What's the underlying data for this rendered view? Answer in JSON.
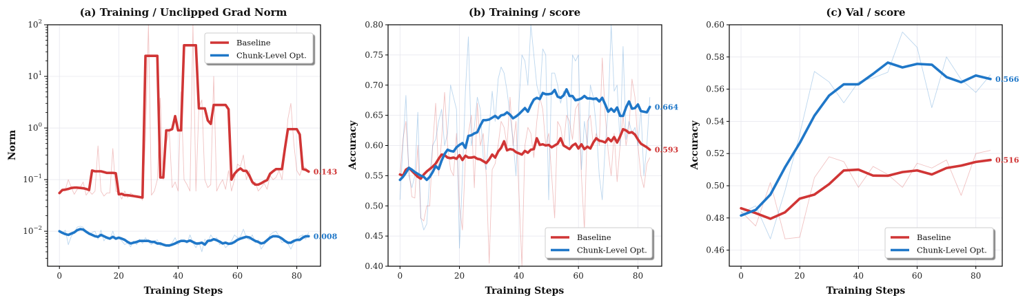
{
  "chart_data": [
    {
      "id": "a",
      "type": "line",
      "title": "(a) Training / Unclipped Grad Norm",
      "xlabel": "Training Steps",
      "ylabel": "Norm",
      "yscale": "log",
      "xlim": [
        -4,
        88
      ],
      "ylim": [
        0.0021,
        100
      ],
      "xticks": [
        0,
        20,
        40,
        60,
        80
      ],
      "yticks": [
        {
          "value": 0.01,
          "base": "10",
          "exp": "−2"
        },
        {
          "value": 0.1,
          "base": "10",
          "exp": "−1"
        },
        {
          "value": 1,
          "base": "10",
          "exp": "0"
        },
        {
          "value": 10,
          "base": "10",
          "exp": "1"
        },
        {
          "value": 100,
          "base": "10",
          "exp": "2"
        }
      ],
      "grid": true,
      "legend": {
        "position": "top-right",
        "entries": [
          "Baseline",
          "Chunk-Level Opt."
        ]
      },
      "series": [
        {
          "name": "Baseline",
          "color": "#d03535",
          "end_label": "0.143",
          "raw": [
            0.055,
            0.06,
            0.065,
            0.1,
            0.07,
            0.052,
            0.065,
            0.07,
            0.09,
            0.05,
            0.06,
            0.052,
            0.06,
            0.45,
            0.06,
            0.048,
            0.055,
            0.055,
            0.4,
            0.06,
            0.055,
            0.042,
            0.06,
            0.045,
            0.055,
            0.05,
            0.045,
            0.048,
            0.04,
            0.6,
            100,
            0.05,
            0.06,
            0.1,
            3.8,
            0.1,
            0.5,
            0.9,
            0.07,
            0.09,
            0.06,
            5,
            0.1,
            0.08,
            0.06,
            100,
            0.06,
            2.5,
            3.5,
            0.1,
            0.07,
            0.08,
            10,
            0.06,
            0.08,
            0.1,
            0.065,
            0.15,
            0.06,
            0.1,
            0.2,
            0.18,
            0.3,
            0.1,
            0.15,
            0.08,
            0.09,
            0.06,
            0.07,
            0.085,
            0.065,
            0.12,
            0.1,
            0.11,
            0.15,
            0.1,
            0.3,
            1.5,
            3,
            0.5,
            0.15,
            0.12,
            0.18,
            0.17,
            0.14
          ],
          "smoothed": [
            0.055,
            0.063,
            0.064,
            0.066,
            0.069,
            0.07,
            0.07,
            0.069,
            0.068,
            0.066,
            0.063,
            0.15,
            0.145,
            0.145,
            0.145,
            0.14,
            0.135,
            0.135,
            0.135,
            0.133,
            0.052,
            0.053,
            0.05,
            0.05,
            0.049,
            0.048,
            0.047,
            0.046,
            0.045,
            25,
            25,
            25,
            25,
            25,
            0.11,
            0.11,
            0.9,
            0.9,
            0.95,
            1.7,
            0.9,
            0.9,
            40,
            40,
            40,
            40,
            40,
            2.4,
            2.4,
            2.4,
            1.4,
            1.2,
            2.8,
            2.8,
            2.8,
            2.8,
            2.8,
            2.3,
            0.1,
            0.13,
            0.15,
            0.165,
            0.148,
            0.148,
            0.12,
            0.09,
            0.08,
            0.08,
            0.085,
            0.092,
            0.098,
            0.13,
            0.145,
            0.16,
            0.16,
            0.16,
            0.4,
            0.95,
            0.95,
            0.95,
            0.95,
            0.75,
            0.16,
            0.155,
            0.143
          ]
        },
        {
          "name": "Chunk-Level Opt.",
          "color": "#1f77c8",
          "end_label": "0.008",
          "raw": [
            0.01,
            0.009,
            0.0105,
            0.0055,
            0.008,
            0.0095,
            0.012,
            0.0125,
            0.012,
            0.0095,
            0.0085,
            0.0095,
            0.01,
            0.007,
            0.0105,
            0.0065,
            0.008,
            0.007,
            0.01,
            0.0068,
            0.0075,
            0.0065,
            0.0055,
            0.006,
            0.005,
            0.0065,
            0.0055,
            0.007,
            0.0058,
            0.0075,
            0.0062,
            0.0055,
            0.0065,
            0.0068,
            0.0052,
            0.0058,
            0.0052,
            0.005,
            0.006,
            0.0075,
            0.0055,
            0.0065,
            0.0065,
            0.0058,
            0.0085,
            0.006,
            0.0048,
            0.0062,
            0.004,
            0.007,
            0.006,
            0.0085,
            0.007,
            0.0075,
            0.0055,
            0.0062,
            0.0048,
            0.0055,
            0.0065,
            0.0085,
            0.0075,
            0.0078,
            0.011,
            0.0075,
            0.0068,
            0.0085,
            0.006,
            0.0068,
            0.0045,
            0.0055,
            0.0065,
            0.0085,
            0.0095,
            0.01,
            0.008,
            0.006,
            0.0065,
            0.0058,
            0.0045,
            0.006,
            0.0068,
            0.008,
            0.0085,
            0.007,
            0.0095
          ],
          "smoothed": [
            0.01,
            0.0093,
            0.0088,
            0.0085,
            0.009,
            0.0095,
            0.0105,
            0.011,
            0.0108,
            0.0098,
            0.009,
            0.0085,
            0.008,
            0.0078,
            0.0085,
            0.008,
            0.0075,
            0.0072,
            0.0078,
            0.0072,
            0.0075,
            0.0072,
            0.0068,
            0.0062,
            0.0058,
            0.006,
            0.0062,
            0.0065,
            0.0065,
            0.0065,
            0.0065,
            0.0062,
            0.0062,
            0.0058,
            0.0058,
            0.0055,
            0.0053,
            0.0053,
            0.0055,
            0.0058,
            0.0062,
            0.0065,
            0.0065,
            0.0063,
            0.0066,
            0.0062,
            0.0058,
            0.0058,
            0.006,
            0.0055,
            0.0065,
            0.0066,
            0.007,
            0.0067,
            0.0063,
            0.0058,
            0.006,
            0.0057,
            0.0058,
            0.0062,
            0.0068,
            0.0072,
            0.0075,
            0.0078,
            0.0076,
            0.007,
            0.0065,
            0.0062,
            0.0058,
            0.006,
            0.0067,
            0.0075,
            0.008,
            0.008,
            0.0078,
            0.0072,
            0.0065,
            0.006,
            0.006,
            0.0065,
            0.0068,
            0.0068,
            0.0075,
            0.008,
            0.008
          ]
        }
      ]
    },
    {
      "id": "b",
      "type": "line",
      "title": "(b) Training / score",
      "xlabel": "Training Steps",
      "ylabel": "Accuracy",
      "yscale": "linear",
      "xlim": [
        -4,
        88
      ],
      "ylim": [
        0.4,
        0.8
      ],
      "xticks": [
        0,
        20,
        40,
        60,
        80
      ],
      "yticks": [
        "0.40",
        "0.45",
        "0.50",
        "0.55",
        "0.60",
        "0.65",
        "0.70",
        "0.75",
        "0.80"
      ],
      "grid": true,
      "legend": {
        "position": "lower-right",
        "entries": [
          "Baseline",
          "Chunk-Level Opt."
        ]
      },
      "series": [
        {
          "name": "Baseline",
          "color": "#d03535",
          "end_label": "0.593",
          "raw": [
            0.55,
            0.61,
            0.64,
            0.56,
            0.515,
            0.513,
            0.6,
            0.48,
            0.475,
            0.5,
            0.5,
            0.6,
            0.67,
            0.55,
            0.61,
            0.688,
            0.6,
            0.56,
            0.55,
            0.62,
            0.5,
            0.46,
            0.58,
            0.62,
            0.65,
            0.53,
            0.67,
            0.6,
            0.62,
            0.55,
            0.405,
            0.56,
            0.57,
            0.6,
            0.64,
            0.63,
            0.6,
            0.68,
            0.6,
            0.64,
            0.52,
            0.4,
            0.6,
            0.63,
            0.62,
            0.58,
            0.64,
            0.68,
            0.66,
            0.6,
            0.62,
            0.55,
            0.48,
            0.64,
            0.63,
            0.6,
            0.65,
            0.64,
            0.61,
            0.66,
            0.67,
            0.55,
            0.46,
            0.64,
            0.65,
            0.6,
            0.62,
            0.6,
            0.745,
            0.65,
            0.59,
            0.55,
            0.62,
            0.54,
            0.6,
            0.65,
            0.6,
            0.63,
            0.71,
            0.68,
            0.6,
            0.55,
            0.53,
            0.57,
            0.58
          ],
          "smoothed": [
            0.552,
            0.55,
            0.56,
            0.563,
            0.558,
            0.553,
            0.548,
            0.545,
            0.552,
            0.557,
            0.561,
            0.565,
            0.57,
            0.578,
            0.585,
            0.584,
            0.58,
            0.579,
            0.58,
            0.578,
            0.584,
            0.576,
            0.583,
            0.58,
            0.58,
            0.581,
            0.578,
            0.577,
            0.574,
            0.571,
            0.577,
            0.585,
            0.58,
            0.59,
            0.596,
            0.607,
            0.592,
            0.594,
            0.593,
            0.589,
            0.587,
            0.585,
            0.591,
            0.588,
            0.593,
            0.594,
            0.612,
            0.601,
            0.602,
            0.6,
            0.601,
            0.597,
            0.6,
            0.603,
            0.612,
            0.6,
            0.597,
            0.594,
            0.6,
            0.603,
            0.595,
            0.602,
            0.594,
            0.598,
            0.595,
            0.605,
            0.612,
            0.608,
            0.607,
            0.605,
            0.612,
            0.607,
            0.614,
            0.605,
            0.615,
            0.627,
            0.625,
            0.621,
            0.622,
            0.618,
            0.61,
            0.603,
            0.6,
            0.597,
            0.593
          ]
        },
        {
          "name": "Chunk-Level Opt.",
          "color": "#1f77c8",
          "end_label": "0.664",
          "raw": [
            0.51,
            0.6,
            0.683,
            0.55,
            0.53,
            0.55,
            0.655,
            0.48,
            0.46,
            0.47,
            0.55,
            0.6,
            0.61,
            0.64,
            0.66,
            0.6,
            0.62,
            0.7,
            0.68,
            0.66,
            0.43,
            0.55,
            0.69,
            0.78,
            0.6,
            0.63,
            0.68,
            0.66,
            0.58,
            0.56,
            0.63,
            0.69,
            0.64,
            0.71,
            0.73,
            0.72,
            0.69,
            0.65,
            0.61,
            0.55,
            0.67,
            0.75,
            0.74,
            0.7,
            0.8,
            0.75,
            0.7,
            0.68,
            0.76,
            0.75,
            0.51,
            0.72,
            0.72,
            0.7,
            0.67,
            0.69,
            0.68,
            0.6,
            0.75,
            0.74,
            0.75,
            0.56,
            0.64,
            0.6,
            0.7,
            0.68,
            0.63,
            0.55,
            0.51,
            0.6,
            0.66,
            0.8,
            0.69,
            0.7,
            0.6,
            0.764,
            0.61,
            0.64,
            0.62,
            0.63,
            0.6,
            0.66,
            0.55,
            0.6,
            0.68
          ],
          "smoothed": [
            0.543,
            0.548,
            0.555,
            0.563,
            0.56,
            0.556,
            0.553,
            0.55,
            0.548,
            0.543,
            0.548,
            0.556,
            0.566,
            0.561,
            0.575,
            0.586,
            0.593,
            0.591,
            0.59,
            0.597,
            0.601,
            0.604,
            0.596,
            0.616,
            0.617,
            0.62,
            0.622,
            0.633,
            0.642,
            0.642,
            0.643,
            0.646,
            0.649,
            0.645,
            0.65,
            0.651,
            0.655,
            0.651,
            0.645,
            0.648,
            0.652,
            0.657,
            0.662,
            0.656,
            0.667,
            0.676,
            0.679,
            0.677,
            0.687,
            0.685,
            0.685,
            0.686,
            0.692,
            0.681,
            0.679,
            0.683,
            0.693,
            0.682,
            0.682,
            0.675,
            0.676,
            0.678,
            0.682,
            0.678,
            0.678,
            0.677,
            0.678,
            0.673,
            0.679,
            0.668,
            0.656,
            0.661,
            0.656,
            0.663,
            0.649,
            0.649,
            0.663,
            0.673,
            0.661,
            0.662,
            0.668,
            0.657,
            0.656,
            0.655,
            0.664
          ]
        }
      ]
    },
    {
      "id": "c",
      "type": "line",
      "title": "(c) Val / score",
      "xlabel": "Training Steps",
      "ylabel": "Accuracy",
      "yscale": "linear",
      "xlim": [
        -4,
        89
      ],
      "ylim": [
        0.45,
        0.6
      ],
      "xticks": [
        0,
        20,
        40,
        60,
        80
      ],
      "yticks": [
        "0.46",
        "0.48",
        "0.50",
        "0.52",
        "0.54",
        "0.56",
        "0.58",
        "0.60"
      ],
      "grid": true,
      "legend": {
        "position": "lower-right",
        "entries": [
          "Baseline",
          "Chunk-Level Opt."
        ]
      },
      "x": [
        0,
        5,
        10,
        15,
        20,
        25,
        30,
        35,
        40,
        45,
        50,
        55,
        60,
        65,
        70,
        75,
        80,
        85
      ],
      "series": [
        {
          "name": "Baseline",
          "color": "#d03535",
          "end_label": "0.516",
          "raw": [
            0.484,
            0.475,
            0.502,
            0.467,
            0.468,
            0.505,
            0.518,
            0.515,
            0.499,
            0.512,
            0.507,
            0.499,
            0.514,
            0.511,
            0.516,
            0.494,
            0.52,
            0.522
          ],
          "smoothed": [
            0.486,
            0.483,
            0.4795,
            0.4835,
            0.492,
            0.4945,
            0.501,
            0.5095,
            0.51,
            0.5063,
            0.5062,
            0.5085,
            0.5095,
            0.507,
            0.511,
            0.5125,
            0.5148,
            0.516
          ]
        },
        {
          "name": "Chunk-Level Opt.",
          "color": "#1f77c8",
          "end_label": "0.566",
          "raw": [
            0.483,
            0.4875,
            0.467,
            0.497,
            0.532,
            0.571,
            0.5645,
            0.5515,
            0.5645,
            0.567,
            0.5705,
            0.5955,
            0.586,
            0.5485,
            0.58,
            0.566,
            0.558,
            0.569
          ],
          "smoothed": [
            0.4815,
            0.485,
            0.4945,
            0.5115,
            0.5265,
            0.5435,
            0.556,
            0.563,
            0.563,
            0.5695,
            0.5765,
            0.5735,
            0.5757,
            0.5752,
            0.5675,
            0.5643,
            0.5685,
            0.5663
          ]
        }
      ]
    }
  ]
}
